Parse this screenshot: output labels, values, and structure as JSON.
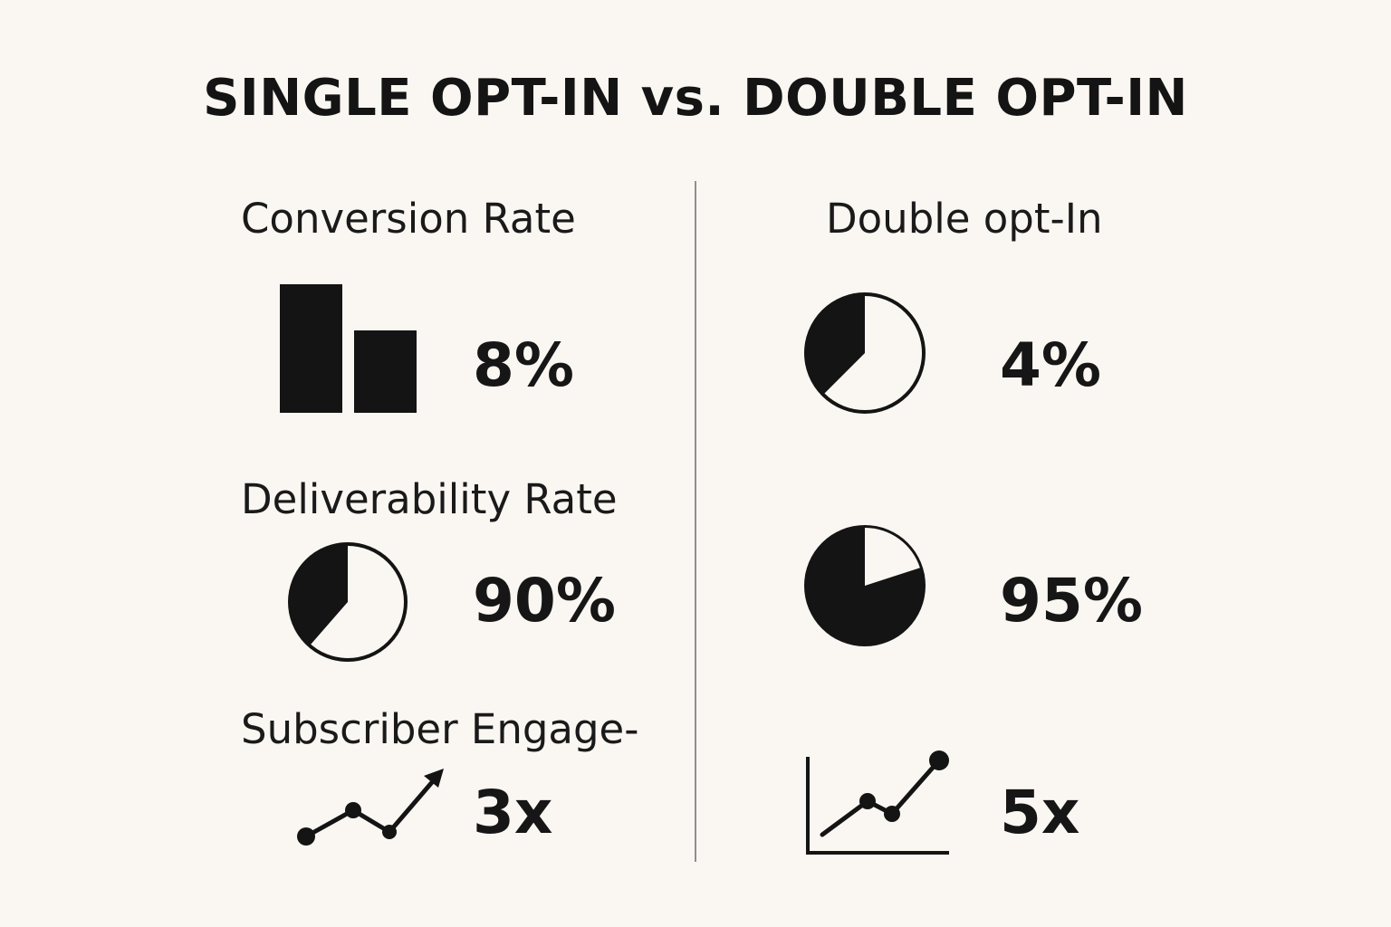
{
  "title": "SINGLE OPT-IN vs. DOUBLE OPT-IN",
  "colors": {
    "background": "#faf7f2",
    "ink": "#141414",
    "divider": "#8f8f8f"
  },
  "left": {
    "conversion": {
      "label": "Conversion Rate",
      "value": "8%",
      "icon": "bar-chart-icon"
    },
    "deliverability": {
      "label": "Deliverability Rate",
      "value": "90%",
      "icon": "pie-chart-icon"
    },
    "engagement": {
      "label": "Subscriber Engage-",
      "value": "3x",
      "icon": "trend-arrow-icon"
    }
  },
  "right": {
    "heading": "Double opt-In",
    "conversion": {
      "value": "4%",
      "icon": "pie-chart-icon"
    },
    "deliverability": {
      "value": "95%",
      "icon": "pie-chart-icon"
    },
    "engagement": {
      "value": "5x",
      "icon": "line-graph-icon"
    }
  }
}
